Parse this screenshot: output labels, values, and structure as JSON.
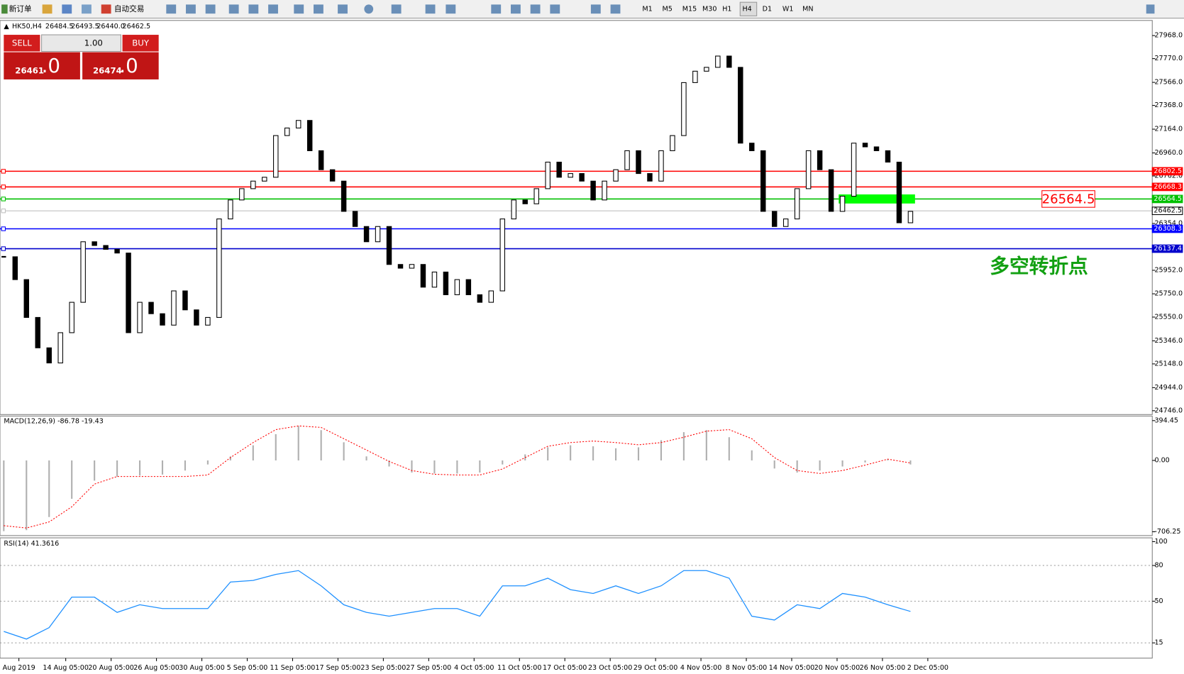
{
  "toolbar": {
    "new_order": "新订单",
    "auto_trading": "自动交易",
    "timeframes": [
      "M1",
      "M5",
      "M15",
      "M30",
      "H1",
      "H4",
      "D1",
      "W1",
      "MN"
    ]
  },
  "header": {
    "symbol": "HK50,H4",
    "open": "26484.5",
    "high": "26493.5",
    "low": "26440.0",
    "close": "26462.5"
  },
  "trade_panel": {
    "sell": "SELL",
    "buy": "BUY",
    "lot": "1.00",
    "sell_price": "26461",
    "sell_fraction": ".0",
    "buy_price": "26474",
    "buy_fraction": ".0"
  },
  "chart_data": [
    {
      "type": "candlestick",
      "ylim": [
        24713,
        28098
      ],
      "yticks": [
        {
          "value": 27968,
          "label": "27968.0"
        },
        {
          "value": 27770,
          "label": "27770.0"
        },
        {
          "value": 27566,
          "label": "27566.0"
        },
        {
          "value": 27368,
          "label": "27368.0"
        },
        {
          "value": 27164,
          "label": "27164.0"
        },
        {
          "value": 26960,
          "label": "26960.0"
        },
        {
          "value": 26762,
          "label": "26762.0"
        },
        {
          "value": 26354,
          "label": "26354.0"
        },
        {
          "value": 25952,
          "label": "25952.0"
        },
        {
          "value": 25750,
          "label": "25750.0"
        },
        {
          "value": 25550,
          "label": "25550.0"
        },
        {
          "value": 25346,
          "label": "25346.0"
        },
        {
          "value": 25148,
          "label": "25148.0"
        },
        {
          "value": 24944,
          "label": "24944.0"
        },
        {
          "value": 24746,
          "label": "24746.0"
        }
      ],
      "closes": [
        26068,
        25872,
        25547,
        25286,
        25156,
        25416,
        25677,
        26197,
        26165,
        26132,
        26100,
        25416,
        25677,
        25579,
        25481,
        25775,
        25612,
        25481,
        25547,
        26393,
        26556,
        26653,
        26718,
        26751,
        27109,
        27174,
        27239,
        26979,
        26816,
        26718,
        26458,
        26328,
        26197,
        26328,
        26002,
        25970,
        26002,
        25807,
        25937,
        25742,
        25872,
        25742,
        25677,
        25775,
        26393,
        26556,
        26523,
        26653,
        26881,
        26751,
        26783,
        26718,
        26556,
        26718,
        26816,
        26979,
        26783,
        26718,
        26979,
        27109,
        27564,
        27662,
        27695,
        27792,
        27695,
        27044,
        26979,
        26458,
        26328,
        26393,
        26653,
        26979,
        26816,
        26458,
        26588,
        27044,
        27012,
        26979,
        26881,
        26360,
        26458
      ],
      "levels": [
        {
          "value": 26802.5,
          "color": "#ff0000"
        },
        {
          "value": 26668.3,
          "color": "#ff0000"
        },
        {
          "value": 26564.5,
          "color": "#00c000"
        },
        {
          "value": 26462.5,
          "color": "#c0c0c0"
        },
        {
          "value": 26308.3,
          "color": "#0000ff"
        },
        {
          "value": 26137.4,
          "color": "#0000cc"
        }
      ],
      "annotation_price": 26564.5,
      "annotation_text": "多空转折点",
      "time_axis": [
        "Aug 2019",
        "14 Aug 05:00",
        "20 Aug 05:00",
        "26 Aug 05:00",
        "30 Aug 05:00",
        "5 Sep 05:00",
        "11 Sep 05:00",
        "17 Sep 05:00",
        "23 Sep 05:00",
        "27 Sep 05:00",
        "4 Oct 05:00",
        "11 Oct 05:00",
        "17 Oct 05:00",
        "23 Oct 05:00",
        "29 Oct 05:00",
        "4 Nov 05:00",
        "8 Nov 05:00",
        "14 Nov 05:00",
        "20 Nov 05:00",
        "26 Nov 05:00",
        "2 Dec 05:00"
      ]
    },
    {
      "type": "macd",
      "title": "MACD(12,26,9) -86.78 -19.43",
      "ylim": [
        -744,
        439.5
      ],
      "yticks": [
        394.45,
        {
          "value": 0,
          "label": "0.00"
        },
        -706.25
      ],
      "histogram": [
        -700,
        -690,
        -560,
        -380,
        -200,
        -160,
        -150,
        -140,
        -100,
        -40,
        40,
        150,
        260,
        340,
        300,
        180,
        40,
        -60,
        -120,
        -130,
        -130,
        -120,
        -40,
        60,
        130,
        150,
        140,
        120,
        130,
        200,
        280,
        300,
        230,
        100,
        -80,
        -120,
        -100,
        -60,
        -20,
        10,
        -40
      ],
      "signal": [
        -646,
        -669,
        -609,
        -459,
        -234,
        -159,
        -159,
        -159,
        -159,
        -144,
        28,
        177,
        305,
        342,
        327,
        215,
        103,
        -10,
        -100,
        -137,
        -144,
        -144,
        -85,
        28,
        140,
        177,
        192,
        177,
        155,
        177,
        230,
        290,
        305,
        215,
        28,
        -100,
        -129,
        -100,
        -47,
        13,
        -25
      ]
    },
    {
      "type": "rsi",
      "title": "RSI(14) 41.3616",
      "ylim": [
        2.2,
        103.2
      ],
      "yticks": [
        100,
        80,
        50,
        15
      ],
      "values": [
        24.6,
        18.2,
        27.8,
        53.4,
        53.4,
        40.6,
        47.0,
        43.8,
        43.8,
        43.8,
        66.1,
        67.4,
        72.5,
        75.7,
        62.9,
        47.0,
        40.6,
        37.4,
        40.6,
        43.8,
        43.8,
        37.4,
        62.9,
        62.9,
        69.3,
        59.7,
        56.5,
        62.9,
        56.5,
        62.9,
        75.7,
        75.7,
        69.3,
        37.4,
        34.2,
        47.0,
        43.8,
        56.5,
        53.4,
        47.0,
        41.4
      ]
    }
  ]
}
